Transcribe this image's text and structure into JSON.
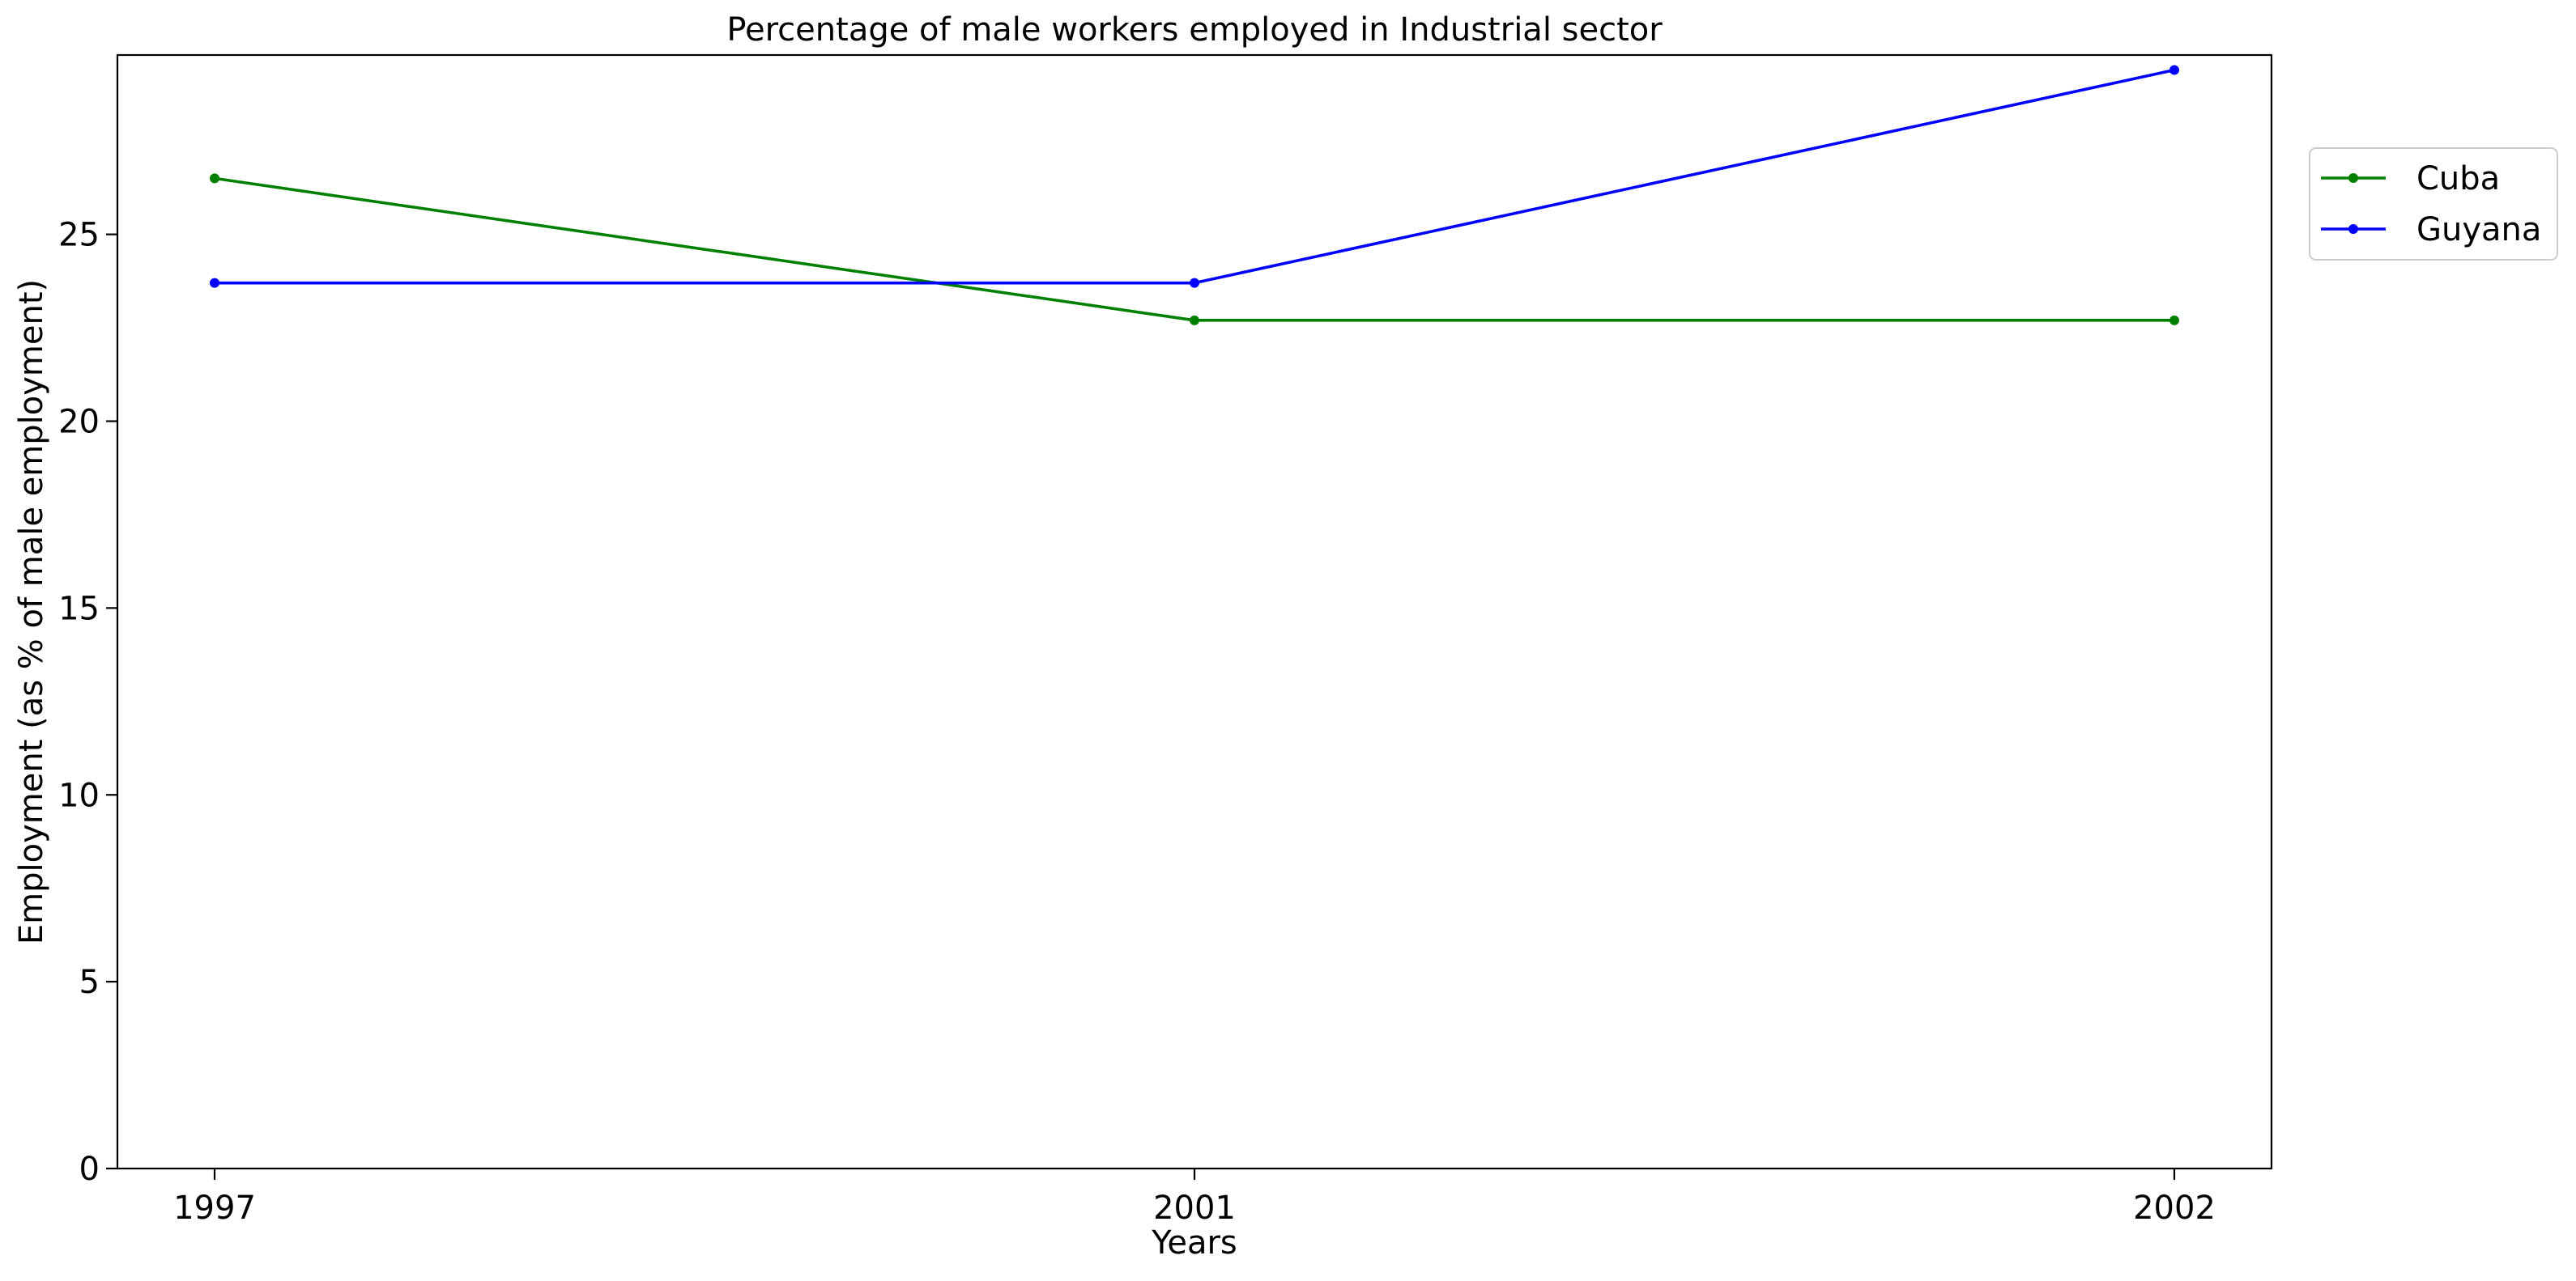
{
  "chart_data": {
    "type": "line",
    "title": "Percentage of male workers employed in Industrial sector",
    "xlabel": "Years",
    "ylabel": "Employment (as % of male employment)",
    "categories": [
      "1997",
      "2001",
      "2002"
    ],
    "ylim": [
      0,
      29.8
    ],
    "yticks": [
      0,
      5,
      10,
      15,
      20,
      25
    ],
    "grid": false,
    "legend_position": "top-right outside",
    "series": [
      {
        "name": "Cuba",
        "color": "#008000",
        "values": [
          26.5,
          22.7,
          22.7
        ]
      },
      {
        "name": "Guyana",
        "color": "#0000ff",
        "values": [
          23.7,
          23.7,
          29.4
        ]
      }
    ]
  }
}
